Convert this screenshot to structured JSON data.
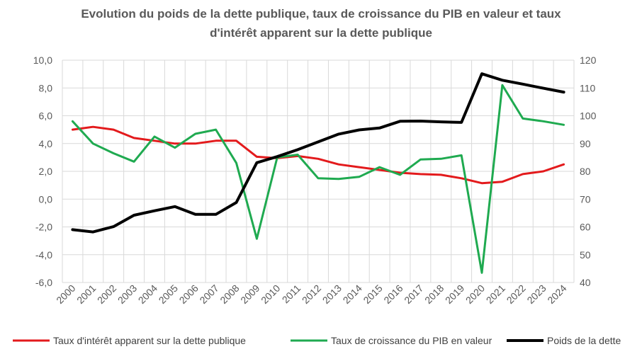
{
  "chart_data": {
    "type": "line",
    "title_lines": [
      "Evolution du poids de la dette publique, taux de croissance du PIB en valeur et taux",
      "d'intérêt apparent sur la dette publique"
    ],
    "categories": [
      "2000",
      "2001",
      "2002",
      "2003",
      "2004",
      "2005",
      "2006",
      "2007",
      "2008",
      "2009",
      "2010",
      "2011",
      "2012",
      "2013",
      "2014",
      "2015",
      "2016",
      "2017",
      "2018",
      "2019",
      "2020",
      "2021",
      "2022",
      "2023",
      "2024"
    ],
    "y_left": {
      "min": -6,
      "max": 10,
      "step": 2,
      "tick_labels": [
        "-6,0",
        "-4,0",
        "-2,0",
        "0,0",
        "2,0",
        "4,0",
        "6,0",
        "8,0",
        "10,0"
      ]
    },
    "y_right": {
      "min": 40,
      "max": 120,
      "step": 10,
      "tick_labels": [
        "40",
        "50",
        "60",
        "70",
        "80",
        "90",
        "100",
        "110",
        "120"
      ]
    },
    "grid": "vertical and horizontal",
    "legend_position": "bottom",
    "series": [
      {
        "name": "Taux d'intérêt apparent sur la dette publique",
        "axis": "left",
        "color": "#e31a1c",
        "values": [
          5.0,
          5.2,
          5.0,
          4.4,
          4.2,
          4.0,
          4.0,
          4.2,
          4.2,
          3.05,
          2.95,
          3.1,
          2.9,
          2.5,
          2.3,
          2.1,
          1.9,
          1.8,
          1.75,
          1.5,
          1.15,
          1.25,
          1.8,
          2.0,
          2.5
        ]
      },
      {
        "name": "Taux de croissance du PIB en valeur",
        "axis": "left",
        "color": "#1faa50",
        "values": [
          5.6,
          4.0,
          3.3,
          2.7,
          4.5,
          3.7,
          4.7,
          5.0,
          2.6,
          -2.85,
          3.0,
          3.2,
          1.5,
          1.45,
          1.6,
          2.3,
          1.75,
          2.85,
          2.9,
          3.15,
          -5.3,
          8.2,
          5.8,
          5.6,
          5.35
        ]
      },
      {
        "name": "Poids de la dette",
        "axis": "right",
        "color": "#000000",
        "values": [
          59,
          58.2,
          60.1,
          64.2,
          65.8,
          67.3,
          64.5,
          64.5,
          68.8,
          83.1,
          85.3,
          87.8,
          90.6,
          93.4,
          94.9,
          95.6,
          98.0,
          98.1,
          97.8,
          97.6,
          115.1,
          112.8,
          111.4,
          109.9,
          108.5
        ]
      }
    ]
  }
}
